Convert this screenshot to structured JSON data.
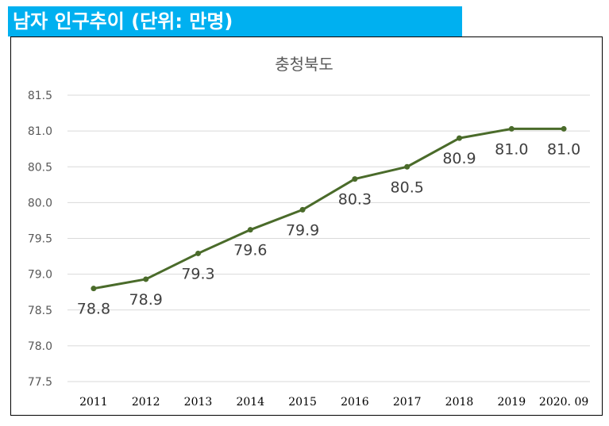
{
  "header": {
    "title": "남자 인구추이 (단위: 만명)"
  },
  "colors": {
    "banner": "#00b0f0",
    "series": "#4a6b2a",
    "grid": "#d9d9d9"
  },
  "chart_data": {
    "type": "line",
    "title": "충청북도",
    "categories": [
      "2011",
      "2012",
      "2013",
      "2014",
      "2015",
      "2016",
      "2017",
      "2018",
      "2019",
      "2020. 09"
    ],
    "values": [
      78.8,
      78.93,
      79.29,
      79.62,
      79.9,
      80.33,
      80.5,
      80.9,
      81.03,
      81.03
    ],
    "data_labels": [
      "78.8",
      "78.9",
      "79.3",
      "79.6",
      "79.9",
      "80.3",
      "80.5",
      "80.9",
      "81.0",
      "81.0"
    ],
    "label_position": [
      "below",
      "below",
      "below",
      "below",
      "below",
      "below",
      "below",
      "below",
      "below",
      "below"
    ],
    "ylim": [
      77.5,
      81.5
    ],
    "yticks": [
      77.5,
      78.0,
      78.5,
      79.0,
      79.5,
      80.0,
      80.5,
      81.0,
      81.5
    ],
    "ytick_labels": [
      "77.5",
      "78.0",
      "78.5",
      "79.0",
      "79.5",
      "80.0",
      "80.5",
      "81.0",
      "81.5"
    ],
    "xlabel": "",
    "ylabel": "",
    "grid": true,
    "legend": "none"
  }
}
